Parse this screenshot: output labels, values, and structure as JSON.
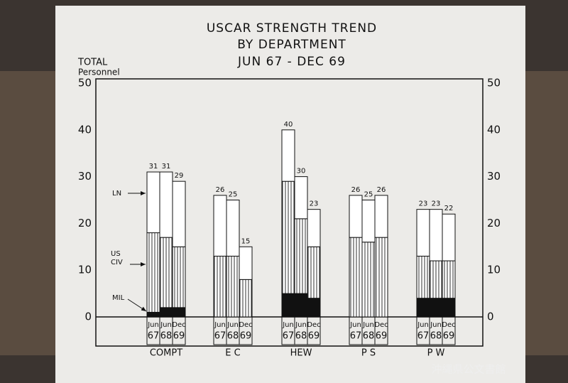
{
  "chart_data": {
    "type": "stacked-bar",
    "title": [
      "USCAR STRENGTH TREND",
      "BY DEPARTMENT",
      "JUN 67 - DEC 69"
    ],
    "y_label": [
      "TOTAL",
      "Personnel"
    ],
    "groups": [
      "COMPT",
      "E C",
      "HEW",
      "P S",
      "P W"
    ],
    "periods": [
      {
        "month": "Jun",
        "year": "67"
      },
      {
        "month": "Jun",
        "year": "68"
      },
      {
        "month": "Dec",
        "year": "69"
      }
    ],
    "series": [
      {
        "name": "MIL",
        "color": "#111111",
        "hatch": false,
        "values": [
          1,
          2,
          2,
          0,
          0,
          0,
          5,
          5,
          4,
          0,
          0,
          0,
          4,
          4,
          4
        ]
      },
      {
        "name": "US CIV",
        "color": "#333333",
        "hatch": true,
        "values": [
          17,
          15,
          13,
          13,
          13,
          8,
          24,
          16,
          11,
          17,
          16,
          17,
          9,
          8,
          8
        ]
      },
      {
        "name": "LN",
        "color": "#ffffff",
        "hatch": false,
        "values": [
          13,
          14,
          14,
          13,
          12,
          7,
          11,
          9,
          8,
          9,
          9,
          9,
          10,
          11,
          10
        ]
      }
    ],
    "totals": [
      31,
      31,
      29,
      26,
      25,
      15,
      40,
      30,
      23,
      26,
      25,
      26,
      23,
      23,
      22
    ],
    "ylim": [
      0,
      50
    ],
    "yticks": [
      0,
      10,
      20,
      30,
      40,
      50
    ],
    "y2ticks": [
      0,
      10,
      20,
      30,
      40,
      50
    ],
    "watermark": "沖縄県公文書館"
  }
}
